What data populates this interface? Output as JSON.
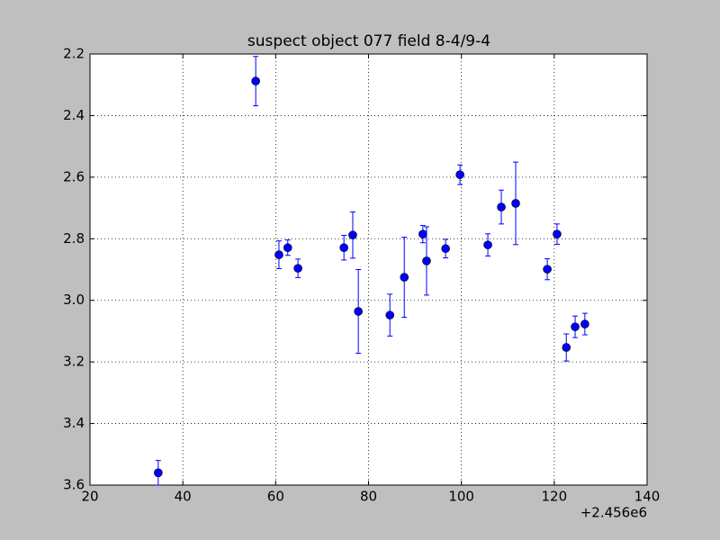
{
  "chart_data": {
    "type": "errorbar-scatter",
    "title": "suspect object 077 field 8-4/9-4",
    "x_offset_label": "+2.456e6",
    "x": [
      34.7,
      55.7,
      60.7,
      62.6,
      64.8,
      74.7,
      76.6,
      77.8,
      84.6,
      87.7,
      91.7,
      92.5,
      96.6,
      99.7,
      105.7,
      108.6,
      111.7,
      118.5,
      120.6,
      122.6,
      124.5,
      126.6
    ],
    "values": [
      3.56,
      2.288,
      2.852,
      2.829,
      2.896,
      2.829,
      2.788,
      3.036,
      3.048,
      2.925,
      2.785,
      2.872,
      2.832,
      2.592,
      2.82,
      2.697,
      2.685,
      2.899,
      2.785,
      3.153,
      3.086,
      3.077
    ],
    "errors": [
      0.04,
      0.08,
      0.045,
      0.025,
      0.03,
      0.04,
      0.075,
      0.136,
      0.068,
      0.13,
      0.028,
      0.111,
      0.03,
      0.032,
      0.036,
      0.055,
      0.134,
      0.034,
      0.033,
      0.044,
      0.035,
      0.035
    ],
    "color": "#0000ff",
    "xlim": [
      20,
      140
    ],
    "xticks": [
      20,
      40,
      60,
      80,
      100,
      120,
      140
    ],
    "ylim": [
      3.6,
      2.2
    ],
    "yticks": [
      2.2,
      2.4,
      2.6,
      2.8,
      {
        "value": 3,
        "label": "3.0"
      },
      3.2,
      3.4,
      3.6
    ],
    "grid": true
  }
}
